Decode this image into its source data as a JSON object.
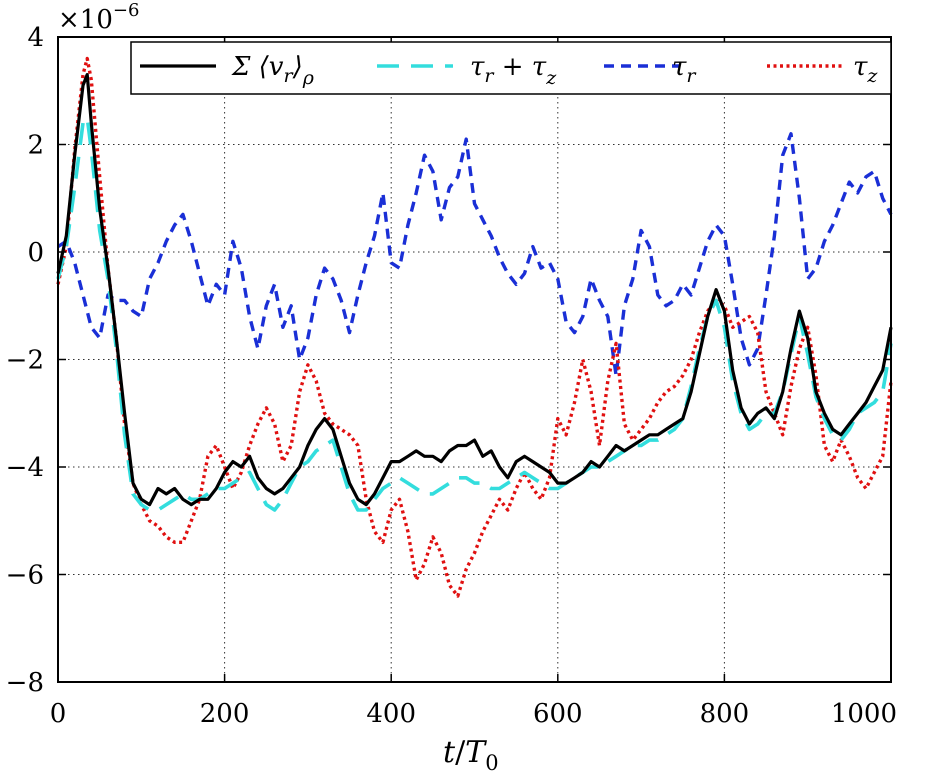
{
  "chart_data": {
    "type": "line",
    "xlabel": "t/T₀",
    "ylabel": "",
    "xlim": [
      0,
      1000
    ],
    "ylim": [
      -8,
      4
    ],
    "xticks": [
      0,
      200,
      400,
      600,
      800,
      1000
    ],
    "yticks": [
      -8,
      -6,
      -4,
      -2,
      0,
      2,
      4
    ],
    "y_scale_factor": "×10⁻⁶",
    "grid": true,
    "legend_position": "top",
    "series": [
      {
        "name": "Σ ⟨vᵣ⟩ᵨ",
        "color": "#000000",
        "style": "solid",
        "x": [
          0,
          10,
          20,
          30,
          35,
          40,
          50,
          60,
          70,
          80,
          90,
          100,
          110,
          120,
          130,
          140,
          150,
          160,
          170,
          180,
          190,
          200,
          210,
          220,
          230,
          240,
          250,
          260,
          270,
          280,
          290,
          300,
          310,
          320,
          330,
          340,
          350,
          360,
          370,
          380,
          390,
          400,
          410,
          420,
          430,
          440,
          450,
          460,
          470,
          480,
          490,
          500,
          510,
          520,
          530,
          540,
          550,
          560,
          570,
          580,
          590,
          600,
          610,
          620,
          630,
          640,
          650,
          660,
          670,
          680,
          690,
          700,
          710,
          720,
          730,
          740,
          750,
          760,
          770,
          780,
          790,
          800,
          810,
          820,
          830,
          840,
          850,
          860,
          870,
          880,
          890,
          900,
          910,
          920,
          930,
          940,
          950,
          960,
          970,
          980,
          990,
          1000
        ],
        "values": [
          -0.4,
          0.3,
          1.8,
          3.1,
          3.3,
          2.4,
          0.8,
          -0.3,
          -1.6,
          -3.0,
          -4.3,
          -4.6,
          -4.7,
          -4.4,
          -4.5,
          -4.4,
          -4.6,
          -4.7,
          -4.6,
          -4.6,
          -4.4,
          -4.1,
          -3.9,
          -4.0,
          -3.8,
          -4.2,
          -4.4,
          -4.5,
          -4.4,
          -4.2,
          -4.0,
          -3.6,
          -3.3,
          -3.1,
          -3.3,
          -3.8,
          -4.3,
          -4.6,
          -4.7,
          -4.5,
          -4.2,
          -3.9,
          -3.9,
          -3.8,
          -3.7,
          -3.8,
          -3.8,
          -3.9,
          -3.7,
          -3.6,
          -3.6,
          -3.5,
          -3.8,
          -3.7,
          -4.0,
          -4.2,
          -3.9,
          -3.8,
          -3.9,
          -4.0,
          -4.1,
          -4.3,
          -4.3,
          -4.2,
          -4.1,
          -3.9,
          -4.0,
          -3.8,
          -3.6,
          -3.7,
          -3.6,
          -3.5,
          -3.4,
          -3.4,
          -3.3,
          -3.2,
          -3.1,
          -2.6,
          -1.9,
          -1.2,
          -0.7,
          -1.1,
          -2.2,
          -2.9,
          -3.2,
          -3.0,
          -2.9,
          -3.1,
          -2.6,
          -1.8,
          -1.1,
          -1.6,
          -2.6,
          -3.0,
          -3.3,
          -3.4,
          -3.2,
          -3.0,
          -2.8,
          -2.5,
          -2.2,
          -1.4
        ]
      },
      {
        "name": "τᵣ + τ_z",
        "color": "#33dddd",
        "style": "long-dash",
        "x": [
          0,
          10,
          20,
          30,
          35,
          40,
          50,
          60,
          70,
          80,
          90,
          100,
          110,
          120,
          130,
          140,
          150,
          160,
          170,
          180,
          190,
          200,
          210,
          220,
          230,
          240,
          250,
          260,
          270,
          280,
          290,
          300,
          310,
          320,
          330,
          340,
          350,
          360,
          370,
          380,
          390,
          400,
          410,
          420,
          430,
          440,
          450,
          460,
          470,
          480,
          490,
          500,
          510,
          520,
          530,
          540,
          550,
          560,
          570,
          580,
          590,
          600,
          610,
          620,
          630,
          640,
          650,
          660,
          670,
          680,
          690,
          700,
          710,
          720,
          730,
          740,
          750,
          760,
          770,
          780,
          790,
          800,
          810,
          820,
          830,
          840,
          850,
          860,
          870,
          880,
          890,
          900,
          910,
          920,
          930,
          940,
          950,
          960,
          970,
          980,
          990,
          1000
        ],
        "values": [
          -0.5,
          0.1,
          1.2,
          2.4,
          2.5,
          1.9,
          0.4,
          -0.5,
          -1.8,
          -3.4,
          -4.5,
          -4.7,
          -4.8,
          -4.8,
          -4.7,
          -4.6,
          -4.5,
          -4.6,
          -4.6,
          -4.5,
          -4.4,
          -4.4,
          -4.3,
          -4.2,
          -4.1,
          -4.4,
          -4.7,
          -4.8,
          -4.6,
          -4.3,
          -4.0,
          -3.9,
          -3.7,
          -3.6,
          -3.5,
          -4.0,
          -4.5,
          -4.8,
          -4.8,
          -4.6,
          -4.4,
          -4.3,
          -4.2,
          -4.3,
          -4.4,
          -4.5,
          -4.5,
          -4.4,
          -4.3,
          -4.2,
          -4.2,
          -4.3,
          -4.3,
          -4.4,
          -4.4,
          -4.3,
          -4.2,
          -4.1,
          -4.2,
          -4.3,
          -4.4,
          -4.4,
          -4.3,
          -4.2,
          -4.1,
          -4.0,
          -4.0,
          -3.9,
          -3.8,
          -3.7,
          -3.6,
          -3.6,
          -3.5,
          -3.5,
          -3.4,
          -3.3,
          -3.1,
          -2.5,
          -1.8,
          -1.2,
          -0.9,
          -1.4,
          -2.4,
          -3.0,
          -3.3,
          -3.2,
          -3.0,
          -3.0,
          -2.6,
          -1.9,
          -1.2,
          -1.9,
          -2.7,
          -3.1,
          -3.4,
          -3.5,
          -3.3,
          -3.0,
          -2.9,
          -2.8,
          -2.6,
          -1.7
        ]
      },
      {
        "name": "τᵣ",
        "color": "#1a2fd6",
        "style": "dashed",
        "x": [
          0,
          10,
          20,
          30,
          40,
          50,
          60,
          70,
          80,
          90,
          100,
          110,
          120,
          130,
          140,
          150,
          160,
          170,
          180,
          190,
          200,
          210,
          220,
          230,
          240,
          250,
          260,
          270,
          280,
          290,
          300,
          310,
          320,
          330,
          340,
          350,
          360,
          370,
          380,
          390,
          400,
          410,
          420,
          430,
          440,
          450,
          460,
          470,
          480,
          490,
          500,
          510,
          520,
          530,
          540,
          550,
          560,
          570,
          580,
          590,
          600,
          610,
          620,
          630,
          640,
          650,
          660,
          670,
          680,
          690,
          700,
          710,
          720,
          730,
          740,
          750,
          760,
          770,
          780,
          790,
          800,
          810,
          820,
          830,
          840,
          850,
          860,
          870,
          880,
          890,
          900,
          910,
          920,
          930,
          940,
          950,
          960,
          970,
          980,
          990,
          1000
        ],
        "values": [
          0.1,
          0.2,
          -0.2,
          -0.8,
          -1.4,
          -1.6,
          -0.8,
          -0.9,
          -0.9,
          -1.1,
          -1.2,
          -0.5,
          -0.2,
          0.2,
          0.5,
          0.7,
          0.2,
          -0.4,
          -1.0,
          -0.6,
          -0.8,
          0.2,
          -0.3,
          -1.2,
          -1.8,
          -1.0,
          -0.6,
          -1.4,
          -1.0,
          -2.0,
          -1.6,
          -0.8,
          -0.3,
          -0.5,
          -0.9,
          -1.5,
          -0.8,
          -0.2,
          0.3,
          1.1,
          -0.2,
          -0.3,
          0.5,
          1.1,
          1.8,
          1.5,
          0.6,
          1.2,
          1.4,
          2.1,
          0.9,
          0.6,
          0.3,
          -0.1,
          -0.4,
          -0.6,
          -0.4,
          0.1,
          -0.3,
          -0.2,
          -0.5,
          -1.3,
          -1.5,
          -1.2,
          -0.5,
          -0.9,
          -1.2,
          -2.3,
          -1.0,
          -0.5,
          0.4,
          0.1,
          -0.8,
          -1.0,
          -0.9,
          -0.6,
          -0.8,
          -0.3,
          0.2,
          0.5,
          0.3,
          -0.6,
          -1.6,
          -2.1,
          -1.8,
          -0.8,
          0.3,
          1.8,
          2.2,
          1.0,
          -0.5,
          -0.3,
          0.2,
          0.5,
          0.9,
          1.3,
          1.1,
          1.4,
          1.5,
          1.0,
          0.7
        ]
      },
      {
        "name": "τ_z",
        "color": "#e01010",
        "style": "dotted",
        "x": [
          0,
          10,
          20,
          30,
          35,
          40,
          50,
          60,
          70,
          80,
          90,
          100,
          110,
          120,
          130,
          140,
          150,
          160,
          170,
          180,
          190,
          200,
          210,
          220,
          230,
          240,
          250,
          260,
          270,
          280,
          290,
          300,
          310,
          320,
          330,
          340,
          350,
          360,
          370,
          380,
          390,
          400,
          410,
          420,
          430,
          440,
          450,
          460,
          470,
          480,
          490,
          500,
          510,
          520,
          530,
          540,
          550,
          560,
          570,
          580,
          590,
          600,
          610,
          620,
          630,
          640,
          650,
          660,
          670,
          680,
          690,
          700,
          710,
          720,
          730,
          740,
          750,
          760,
          770,
          780,
          790,
          800,
          810,
          820,
          830,
          840,
          850,
          860,
          870,
          880,
          890,
          900,
          910,
          920,
          930,
          940,
          950,
          960,
          970,
          980,
          990,
          1000
        ],
        "values": [
          -0.6,
          0.1,
          1.9,
          3.3,
          3.6,
          3.2,
          1.4,
          -0.3,
          -1.6,
          -3.2,
          -4.3,
          -4.7,
          -5.0,
          -5.1,
          -5.3,
          -5.4,
          -5.4,
          -5.0,
          -4.6,
          -3.8,
          -3.6,
          -4.0,
          -4.4,
          -4.1,
          -3.6,
          -3.2,
          -2.9,
          -3.2,
          -3.9,
          -3.6,
          -2.6,
          -2.1,
          -2.4,
          -3.0,
          -3.2,
          -3.3,
          -3.4,
          -3.6,
          -4.6,
          -5.2,
          -5.4,
          -4.8,
          -4.6,
          -5.2,
          -6.1,
          -5.8,
          -5.3,
          -5.6,
          -6.2,
          -6.4,
          -5.9,
          -5.6,
          -5.2,
          -4.9,
          -4.6,
          -4.8,
          -4.4,
          -4.1,
          -4.4,
          -4.6,
          -4.2,
          -3.1,
          -3.4,
          -2.8,
          -2.0,
          -2.6,
          -3.6,
          -2.4,
          -1.7,
          -3.2,
          -3.5,
          -3.3,
          -3.1,
          -2.8,
          -2.6,
          -2.5,
          -2.3,
          -2.0,
          -1.5,
          -1.1,
          -0.9,
          -1.0,
          -1.4,
          -1.3,
          -1.2,
          -1.5,
          -2.6,
          -3.0,
          -3.4,
          -2.5,
          -1.8,
          -1.4,
          -2.3,
          -3.6,
          -3.9,
          -3.5,
          -3.8,
          -4.2,
          -4.4,
          -4.1,
          -3.8,
          -2.4
        ]
      }
    ]
  },
  "labels": {
    "scale_factor": "×10",
    "scale_exponent": "−6",
    "xlabel_t": "t",
    "xlabel_slash": "/",
    "xlabel_T": "T",
    "xlabel_sub": "0",
    "legend": [
      {
        "main": "Σ ⟨v",
        "sub": "r",
        "tail": "⟩",
        "sub2": "ρ"
      },
      {
        "main": "τ",
        "sub": "r",
        "tail": " + τ",
        "sub2": "z"
      },
      {
        "main": "τ",
        "sub": "r",
        "tail": "",
        "sub2": ""
      },
      {
        "main": "τ",
        "sub": "z",
        "tail": "",
        "sub2": ""
      }
    ]
  }
}
